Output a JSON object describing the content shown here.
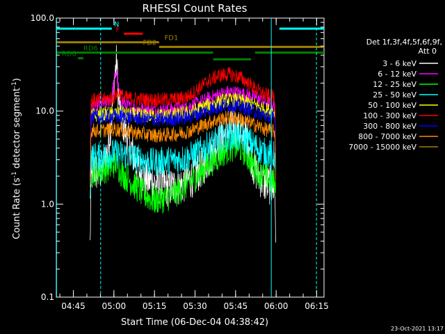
{
  "chart_data": {
    "type": "line",
    "title": "RHESSI Count Rates",
    "xlabel": "Start Time (06-Dec-04 04:38:42)",
    "ylabel_pre": "Count Rate (s",
    "ylabel_sup1": "-1",
    "ylabel_mid": " detector segment",
    "ylabel_sup2": "-1",
    "ylabel_post": ")",
    "yscale": "log",
    "xlim_min": [
      0,
      99
    ],
    "ylim": [
      0.1,
      100
    ],
    "x_ticks": [
      {
        "label": "04:45",
        "min": 6.3
      },
      {
        "label": "05:00",
        "min": 21.3
      },
      {
        "label": "05:15",
        "min": 36.3
      },
      {
        "label": "05:30",
        "min": 51.3
      },
      {
        "label": "05:45",
        "min": 66.3
      },
      {
        "label": "06:00",
        "min": 81.3
      },
      {
        "label": "06:15",
        "min": 96.3
      }
    ],
    "y_ticks": [
      {
        "label": "0.1",
        "value": 0.1
      },
      {
        "label": "1.0",
        "value": 1
      },
      {
        "label": "10.0",
        "value": 10
      },
      {
        "label": "100.0",
        "value": 100
      }
    ],
    "legend_header": [
      "Det 1f,3f,4f,5f,6f,9f,",
      "Att 0"
    ],
    "series": [
      {
        "name": "3 - 6 keV",
        "color": "#ffffff",
        "points": [
          [
            12.5,
            0.35
          ],
          [
            12.8,
            1.6
          ],
          [
            13.5,
            2.5
          ],
          [
            15,
            2.2
          ],
          [
            17,
            2.3
          ],
          [
            19,
            3.8
          ],
          [
            20.5,
            9
          ],
          [
            21.5,
            22
          ],
          [
            22.3,
            34
          ],
          [
            23,
            14
          ],
          [
            24,
            9
          ],
          [
            25,
            7
          ],
          [
            27,
            4.5
          ],
          [
            29,
            3
          ],
          [
            31,
            2.2
          ],
          [
            34,
            1.8
          ],
          [
            38,
            1.6
          ],
          [
            42,
            1.5
          ],
          [
            46,
            1.6
          ],
          [
            50,
            1.9
          ],
          [
            53,
            2.3
          ],
          [
            56,
            3
          ],
          [
            59,
            4.2
          ],
          [
            62,
            5.5
          ],
          [
            65,
            6.5
          ],
          [
            67,
            6.2
          ],
          [
            70,
            5.5
          ],
          [
            71.5,
            4.5
          ],
          [
            73,
            2.5
          ],
          [
            75,
            2
          ],
          [
            77,
            1.7
          ],
          [
            79,
            1.6
          ],
          [
            80.8,
            1.5
          ],
          [
            81.2,
            0.4
          ]
        ]
      },
      {
        "name": "6 - 12 keV",
        "color": "#ff00ff",
        "points": [
          [
            12.5,
            2
          ],
          [
            12.8,
            11
          ],
          [
            15,
            11.5
          ],
          [
            18,
            12
          ],
          [
            20.5,
            13.5
          ],
          [
            21.5,
            22
          ],
          [
            22.3,
            28
          ],
          [
            23,
            17
          ],
          [
            24,
            13
          ],
          [
            27,
            11
          ],
          [
            32,
            10.5
          ],
          [
            38,
            10.2
          ],
          [
            44,
            10.5
          ],
          [
            48,
            11
          ],
          [
            52,
            12
          ],
          [
            56,
            13.5
          ],
          [
            60,
            15
          ],
          [
            64,
            16
          ],
          [
            68,
            15.5
          ],
          [
            72,
            14.5
          ],
          [
            76,
            13
          ],
          [
            79,
            12
          ],
          [
            80.8,
            11
          ],
          [
            81.2,
            2.5
          ]
        ]
      },
      {
        "name": "12 - 25 keV",
        "color": "#00ff00",
        "points": [
          [
            12.5,
            1.3
          ],
          [
            12.8,
            2.2
          ],
          [
            16,
            2.3
          ],
          [
            20,
            2.5
          ],
          [
            22,
            2.8
          ],
          [
            24,
            2.2
          ],
          [
            28,
            1.7
          ],
          [
            32,
            1.3
          ],
          [
            36,
            1.1
          ],
          [
            40,
            1.15
          ],
          [
            44,
            1.3
          ],
          [
            48,
            1.6
          ],
          [
            52,
            2
          ],
          [
            56,
            2.6
          ],
          [
            60,
            3.3
          ],
          [
            64,
            4
          ],
          [
            67,
            4.2
          ],
          [
            70,
            3.6
          ],
          [
            72,
            2.8
          ],
          [
            75,
            2.2
          ],
          [
            78,
            1.9
          ],
          [
            80.8,
            1.7
          ],
          [
            81.2,
            1.2
          ]
        ]
      },
      {
        "name": "25 - 50 keV",
        "color": "#00ffff",
        "points": [
          [
            12.5,
            1.5
          ],
          [
            12.8,
            3.2
          ],
          [
            17,
            3.3
          ],
          [
            21,
            3.5
          ],
          [
            25,
            3.4
          ],
          [
            30,
            3.1
          ],
          [
            35,
            2.8
          ],
          [
            40,
            2.9
          ],
          [
            45,
            3
          ],
          [
            49,
            3.2
          ],
          [
            53,
            3.7
          ],
          [
            57,
            4.4
          ],
          [
            61,
            5
          ],
          [
            65,
            5.4
          ],
          [
            68,
            5.2
          ],
          [
            71,
            4.8
          ],
          [
            74,
            4.1
          ],
          [
            77,
            3.6
          ],
          [
            80.8,
            3.3
          ],
          [
            81.2,
            1.6
          ]
        ]
      },
      {
        "name": "50 - 100 keV",
        "color": "#ffff00",
        "points": [
          [
            12.5,
            1.8
          ],
          [
            12.8,
            9
          ],
          [
            17,
            9.2
          ],
          [
            21,
            9.5
          ],
          [
            25,
            9.3
          ],
          [
            30,
            9.1
          ],
          [
            35,
            8.9
          ],
          [
            40,
            9
          ],
          [
            45,
            9.2
          ],
          [
            50,
            9.8
          ],
          [
            54,
            11
          ],
          [
            58,
            12
          ],
          [
            62,
            13
          ],
          [
            66,
            13.2
          ],
          [
            70,
            12.5
          ],
          [
            74,
            11.5
          ],
          [
            77,
            10.5
          ],
          [
            80.8,
            9.8
          ],
          [
            81.2,
            2
          ]
        ]
      },
      {
        "name": "100 - 300 keV",
        "color": "#ff0000",
        "points": [
          [
            12.5,
            2
          ],
          [
            12.8,
            13
          ],
          [
            17,
            13.3
          ],
          [
            21,
            13.8
          ],
          [
            23,
            16
          ],
          [
            25,
            14
          ],
          [
            30,
            13.5
          ],
          [
            35,
            13.2
          ],
          [
            40,
            13.3
          ],
          [
            45,
            13.5
          ],
          [
            49,
            14.5
          ],
          [
            52,
            17
          ],
          [
            56,
            21
          ],
          [
            60,
            24
          ],
          [
            64,
            25
          ],
          [
            68,
            23
          ],
          [
            71,
            20
          ],
          [
            74,
            17
          ],
          [
            77,
            15
          ],
          [
            80.8,
            14
          ],
          [
            81.2,
            2.5
          ]
        ]
      },
      {
        "name": "300 - 800 keV",
        "color": "#0000ff",
        "points": [
          [
            12.5,
            1.8
          ],
          [
            12.8,
            8.5
          ],
          [
            17,
            8.6
          ],
          [
            21,
            8.8
          ],
          [
            25,
            8.7
          ],
          [
            30,
            8.4
          ],
          [
            35,
            8.1
          ],
          [
            40,
            8.1
          ],
          [
            45,
            8.3
          ],
          [
            50,
            8.8
          ],
          [
            54,
            9.8
          ],
          [
            58,
            10.8
          ],
          [
            62,
            11.5
          ],
          [
            66,
            11.5
          ],
          [
            70,
            10.8
          ],
          [
            74,
            9.8
          ],
          [
            77,
            9
          ],
          [
            80.8,
            8.3
          ],
          [
            81.2,
            2
          ]
        ]
      },
      {
        "name": "800 - 7000 keV",
        "color": "#ff8c00",
        "points": [
          [
            12.5,
            1.5
          ],
          [
            12.8,
            6.2
          ],
          [
            17,
            6.2
          ],
          [
            21,
            6.4
          ],
          [
            25,
            6.2
          ],
          [
            30,
            5.8
          ],
          [
            35,
            5.5
          ],
          [
            40,
            5.5
          ],
          [
            45,
            5.7
          ],
          [
            50,
            6.2
          ],
          [
            54,
            7
          ],
          [
            58,
            7.8
          ],
          [
            62,
            8.4
          ],
          [
            66,
            8.5
          ],
          [
            70,
            7.8
          ],
          [
            74,
            7
          ],
          [
            77,
            6.4
          ],
          [
            80.8,
            6
          ],
          [
            81.2,
            1.7
          ]
        ]
      },
      {
        "name": "7000 - 15000 keV",
        "color": "#a08000",
        "points": []
      }
    ],
    "bars": [
      {
        "label": "N",
        "color": "#00ffff",
        "y_value": 77,
        "segments": [
          [
            0,
            20.5
          ],
          [
            82.5,
            99
          ]
        ],
        "label_min": 21.3
      },
      {
        "label": "F",
        "color": "#ff0000",
        "y_value": 68,
        "segments": [
          [
            25,
            32
          ]
        ],
        "label_min": 22
      },
      {
        "label": "FD1",
        "color": "#a08000",
        "y_value": 55,
        "segments": [
          [
            0,
            38
          ]
        ],
        "label_min": 40
      },
      {
        "label": "FD2",
        "color": "#a08000",
        "y_value": 49,
        "segments": [
          [
            38,
            99
          ]
        ],
        "label_min": 32
      },
      {
        "label": "RD6",
        "color": "#008000",
        "y_value": 37,
        "segments": [
          [
            8,
            10
          ]
        ],
        "label_min": 2
      },
      {
        "label": "RD6",
        "color": "#008000",
        "y_value": 42.5,
        "segments": [
          [
            0,
            58
          ],
          [
            73.5,
            99
          ]
        ],
        "label_min": 10
      },
      {
        "label": "",
        "color": "#008000",
        "y_value": 36,
        "segments": [
          [
            58,
            72
          ]
        ],
        "label_min": 0
      }
    ],
    "vlines": [
      {
        "min": 0.1,
        "style": "solid"
      },
      {
        "min": 16.4,
        "style": "dash"
      },
      {
        "min": 79.5,
        "style": "solid"
      },
      {
        "min": 96.2,
        "style": "dash"
      }
    ],
    "axis_color": "#00ffff"
  },
  "footer": {
    "date": "23-Oct-2021 13:17"
  }
}
